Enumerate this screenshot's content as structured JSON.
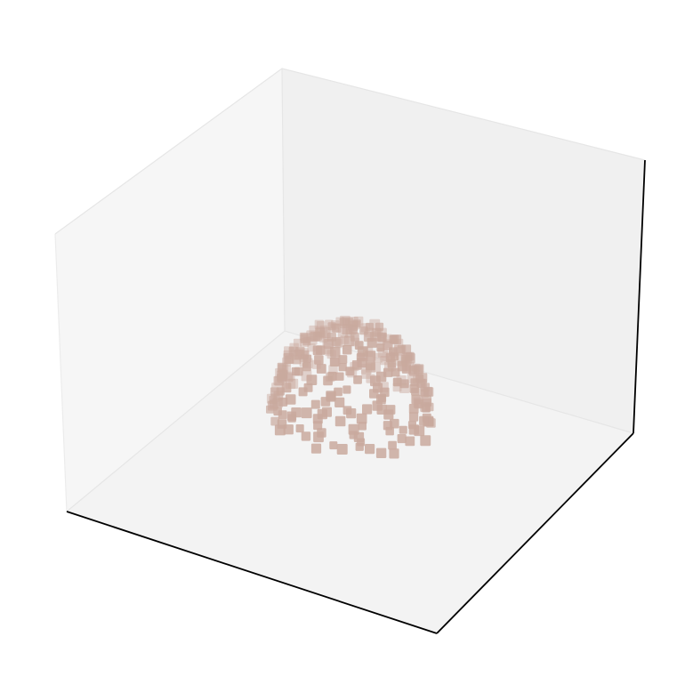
{
  "chart_data": {
    "type": "scatter",
    "projection": "3d",
    "title": "",
    "xlabel": "",
    "ylabel": "",
    "zlabel": "",
    "ticks_visible": false,
    "grid": false,
    "legend": "none",
    "marker": "square",
    "colors": {
      "marker": "#c9a99e",
      "pane_back": "#f0f0f0",
      "pane_left": "#f6f6f6",
      "pane_floor": "#f3f3f3",
      "axis_line": "#000000"
    },
    "series": [
      {
        "point_count": 300,
        "shape": "hemispherical dome of points resting near the floor at the center of the axes box"
      }
    ]
  }
}
